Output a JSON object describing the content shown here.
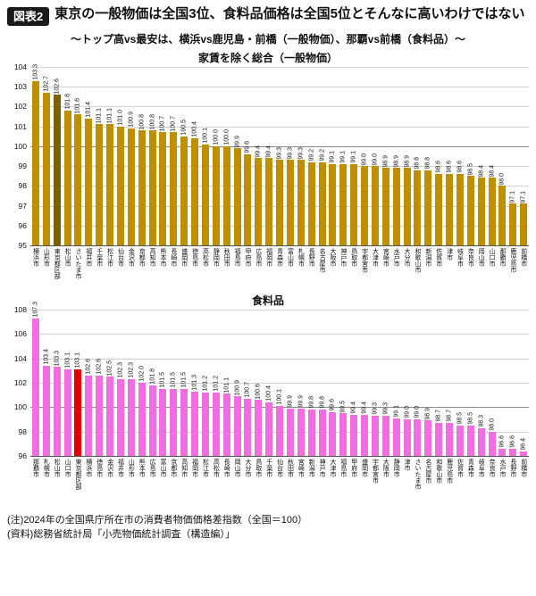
{
  "header": {
    "badge": "図表2",
    "title": "東京の一般物価は全国3位、食料品価格は全国5位とそんなに高いわけではない",
    "subtitle": "～トップ高vs最安は、横浜vs鹿児島・前橋（一般物価）、那覇vs前橋（食料品）～"
  },
  "notes": {
    "line1": "(注)2024年の全国県庁所在市の消費者物価価格差指数（全国＝100）",
    "line2": "(資料)総務省統計局「小売物価統計調査（構造編）」"
  },
  "chart_data": [
    {
      "type": "bar",
      "title": "家賃を除く総合（一般物価）",
      "xlabel": "",
      "ylabel": "",
      "ylim": [
        95,
        104
      ],
      "yticks": [
        104,
        103,
        102,
        101,
        100,
        99,
        98,
        97,
        96,
        95
      ],
      "grid": true,
      "legend": "none",
      "bar_color": "#BE9000",
      "highlight_color": "#7F6000",
      "highlight_index": 2,
      "highlight_label": "東京都区部",
      "categories": [
        "横浜市",
        "山形市",
        "東京都区部",
        "松山市",
        "さいたま市",
        "福井市",
        "千葉市",
        "松江市",
        "仙台市",
        "金沢市",
        "京都市",
        "高知市",
        "熊本市",
        "長崎市",
        "盛岡市",
        "徳島市",
        "高松市",
        "静岡市",
        "秋田市",
        "福島市",
        "甲府市",
        "広島市",
        "福岡市",
        "青森市",
        "富山市",
        "札幌市",
        "長野市",
        "名古屋市",
        "大阪市",
        "神戸市",
        "鳥取市",
        "宇都宮市",
        "大津市",
        "宮崎市",
        "水戸市",
        "大分市",
        "和歌山市",
        "新潟市",
        "佐賀市",
        "津市",
        "岐阜市",
        "奈良市",
        "岡山市",
        "山口市",
        "那覇市",
        "鹿児島市",
        "前橋市"
      ],
      "values": [
        "103.3",
        "102.7",
        "102.6",
        "101.8",
        "101.6",
        "101.4",
        "101.1",
        "101.1",
        "101.0",
        "100.9",
        "100.8",
        "100.8",
        "100.7",
        "100.7",
        "100.5",
        "100.4",
        "100.1",
        "100.0",
        "100.0",
        "99.9",
        "99.6",
        "99.4",
        "99.4",
        "99.3",
        "99.3",
        "99.3",
        "99.2",
        "99.2",
        "99.1",
        "99.1",
        "99.1",
        "99.0",
        "99.0",
        "98.9",
        "98.9",
        "98.9",
        "98.8",
        "98.8",
        "98.6",
        "98.6",
        "98.6",
        "98.5",
        "98.4",
        "98.4",
        "98.0",
        "97.1",
        "97.1"
      ]
    },
    {
      "type": "bar",
      "title": "食料品",
      "xlabel": "",
      "ylabel": "",
      "ylim": [
        96,
        108
      ],
      "yticks": [
        108,
        106,
        104,
        102,
        100,
        98,
        96
      ],
      "grid": true,
      "legend": "none",
      "bar_color": "#F06EE0",
      "highlight_color": "#E60000",
      "highlight_index": 4,
      "highlight_label": "東京都区部",
      "categories": [
        "那覇市",
        "札幌市",
        "松山市",
        "山口市",
        "東京都区部",
        "横浜市",
        "徳島市",
        "金沢市",
        "福井市",
        "山形市",
        "熊本市",
        "広島市",
        "富山市",
        "京都市",
        "高知市",
        "福岡市",
        "松江市",
        "高松市",
        "長崎市",
        "岡山市",
        "大分市",
        "鳥取市",
        "千葉市",
        "仙台市",
        "秋田市",
        "宮崎市",
        "新潟市",
        "神戸市",
        "大津市",
        "福島市",
        "甲府市",
        "盛岡市",
        "宇都宮市",
        "大阪市",
        "静岡市",
        "津市",
        "さいたま市",
        "名古屋市",
        "和歌山市",
        "鹿児島市",
        "佐賀市",
        "青森市",
        "岐阜市",
        "奈良市",
        "水戸市",
        "長野市",
        "前橋市"
      ],
      "values": [
        "107.3",
        "103.4",
        "103.3",
        "103.1",
        "103.1",
        "102.6",
        "102.6",
        "102.5",
        "102.3",
        "102.3",
        "102.0",
        "101.8",
        "101.5",
        "101.5",
        "101.5",
        "101.3",
        "101.2",
        "101.2",
        "101.1",
        "100.9",
        "100.7",
        "100.6",
        "100.4",
        "100.1",
        "99.9",
        "99.9",
        "99.8",
        "99.8",
        "99.6",
        "99.5",
        "99.4",
        "99.4",
        "99.3",
        "99.3",
        "99.1",
        "99.0",
        "99.0",
        "98.9",
        "98.7",
        "98.7",
        "98.5",
        "98.5",
        "98.3",
        "98.0",
        "96.6",
        "96.6",
        "96.4"
      ]
    }
  ]
}
